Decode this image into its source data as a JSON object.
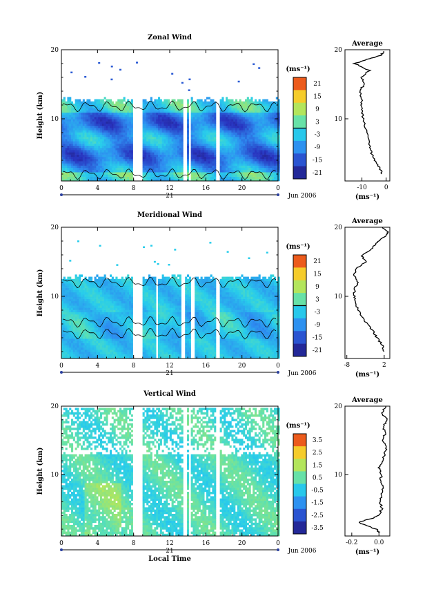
{
  "figure": {
    "date_label": "Jun 2006",
    "day_label": "21",
    "xlabel": "Local Time",
    "x_ticks": [
      "0",
      "4",
      "8",
      "12",
      "16",
      "20",
      "0"
    ],
    "y_ticks": [
      "10",
      "20"
    ],
    "average_title": "Average",
    "unit": "(ms⁻¹)"
  },
  "chart_data": [
    {
      "type": "heatmap",
      "title": "Zonal Wind",
      "ylabel": "Height (km)",
      "xlim": [
        0,
        24
      ],
      "ylim": [
        1,
        20
      ],
      "colorbar": {
        "ticks": [
          "21",
          "15",
          "9",
          "3",
          "-3",
          "-9",
          "-15",
          "-21"
        ],
        "range": [
          -24,
          24
        ],
        "contour": 0
      },
      "data_top_km": 12.5,
      "avg": {
        "x_ticks": [
          "-10",
          "0"
        ],
        "xlim": [
          -17,
          1.5
        ],
        "points": [
          [
            -1.5,
            2
          ],
          [
            -3,
            3
          ],
          [
            -4.5,
            4
          ],
          [
            -6,
            5
          ],
          [
            -6.5,
            6
          ],
          [
            -8,
            8
          ],
          [
            -9.5,
            10
          ],
          [
            -10,
            11
          ],
          [
            -10.5,
            12
          ],
          [
            -10,
            13
          ],
          [
            -11,
            14
          ],
          [
            -9,
            15
          ],
          [
            -10,
            16
          ],
          [
            -7,
            17
          ],
          [
            -13,
            18
          ],
          [
            -8,
            18.6
          ],
          [
            -2,
            19.2
          ],
          [
            -1,
            19.8
          ]
        ]
      }
    },
    {
      "type": "heatmap",
      "title": "Meridional Wind",
      "ylabel": "Height (km)",
      "xlim": [
        0,
        24
      ],
      "ylim": [
        1,
        20
      ],
      "colorbar": {
        "ticks": [
          "21",
          "15",
          "9",
          "3",
          "-3",
          "-9",
          "-15",
          "-21"
        ],
        "range": [
          -24,
          24
        ],
        "contour": 0
      },
      "data_top_km": 12.5,
      "avg": {
        "x_ticks": [
          "-8",
          "2"
        ],
        "xlim": [
          -8.5,
          3.5
        ],
        "points": [
          [
            2,
            2
          ],
          [
            1.5,
            3
          ],
          [
            0,
            4
          ],
          [
            -1,
            5
          ],
          [
            -2.5,
            6
          ],
          [
            -4,
            7
          ],
          [
            -5,
            8
          ],
          [
            -5.5,
            9
          ],
          [
            -6,
            10
          ],
          [
            -6,
            11
          ],
          [
            -5,
            12
          ],
          [
            -6,
            13
          ],
          [
            -5.5,
            14
          ],
          [
            -3,
            15
          ],
          [
            -4,
            16
          ],
          [
            -1,
            17
          ],
          [
            0,
            17.8
          ],
          [
            2,
            18.6
          ],
          [
            3,
            19.3
          ],
          [
            1.5,
            20
          ]
        ]
      }
    },
    {
      "type": "heatmap",
      "title": "Vertical Wind",
      "ylabel": "Height (km)",
      "xlabel": "Local Time",
      "xlim": [
        0,
        24
      ],
      "ylim": [
        1,
        20
      ],
      "colorbar": {
        "ticks": [
          "3.5",
          "2.5",
          "1.5",
          "0.5",
          "-0.5",
          "-1.5",
          "-2.5",
          "-3.5"
        ],
        "range": [
          -4,
          4
        ]
      },
      "data_top_km": 20,
      "avg": {
        "x_ticks": [
          "-0.2",
          "0.0"
        ],
        "xlim": [
          -0.25,
          0.08
        ],
        "points": [
          [
            0.0,
            1.5
          ],
          [
            -0.02,
            2
          ],
          [
            -0.15,
            3
          ],
          [
            -0.05,
            3.6
          ],
          [
            0.0,
            4
          ],
          [
            0.02,
            5
          ],
          [
            0.01,
            6
          ],
          [
            0.02,
            7
          ],
          [
            0.03,
            8
          ],
          [
            0.01,
            9
          ],
          [
            0.02,
            10
          ],
          [
            0.0,
            11
          ],
          [
            0.03,
            12
          ],
          [
            0.04,
            13
          ],
          [
            0.06,
            14
          ],
          [
            0.02,
            15
          ],
          [
            0.05,
            16
          ],
          [
            0.03,
            17
          ],
          [
            0.06,
            18
          ],
          [
            0.02,
            19
          ],
          [
            0.05,
            20
          ]
        ]
      }
    }
  ]
}
